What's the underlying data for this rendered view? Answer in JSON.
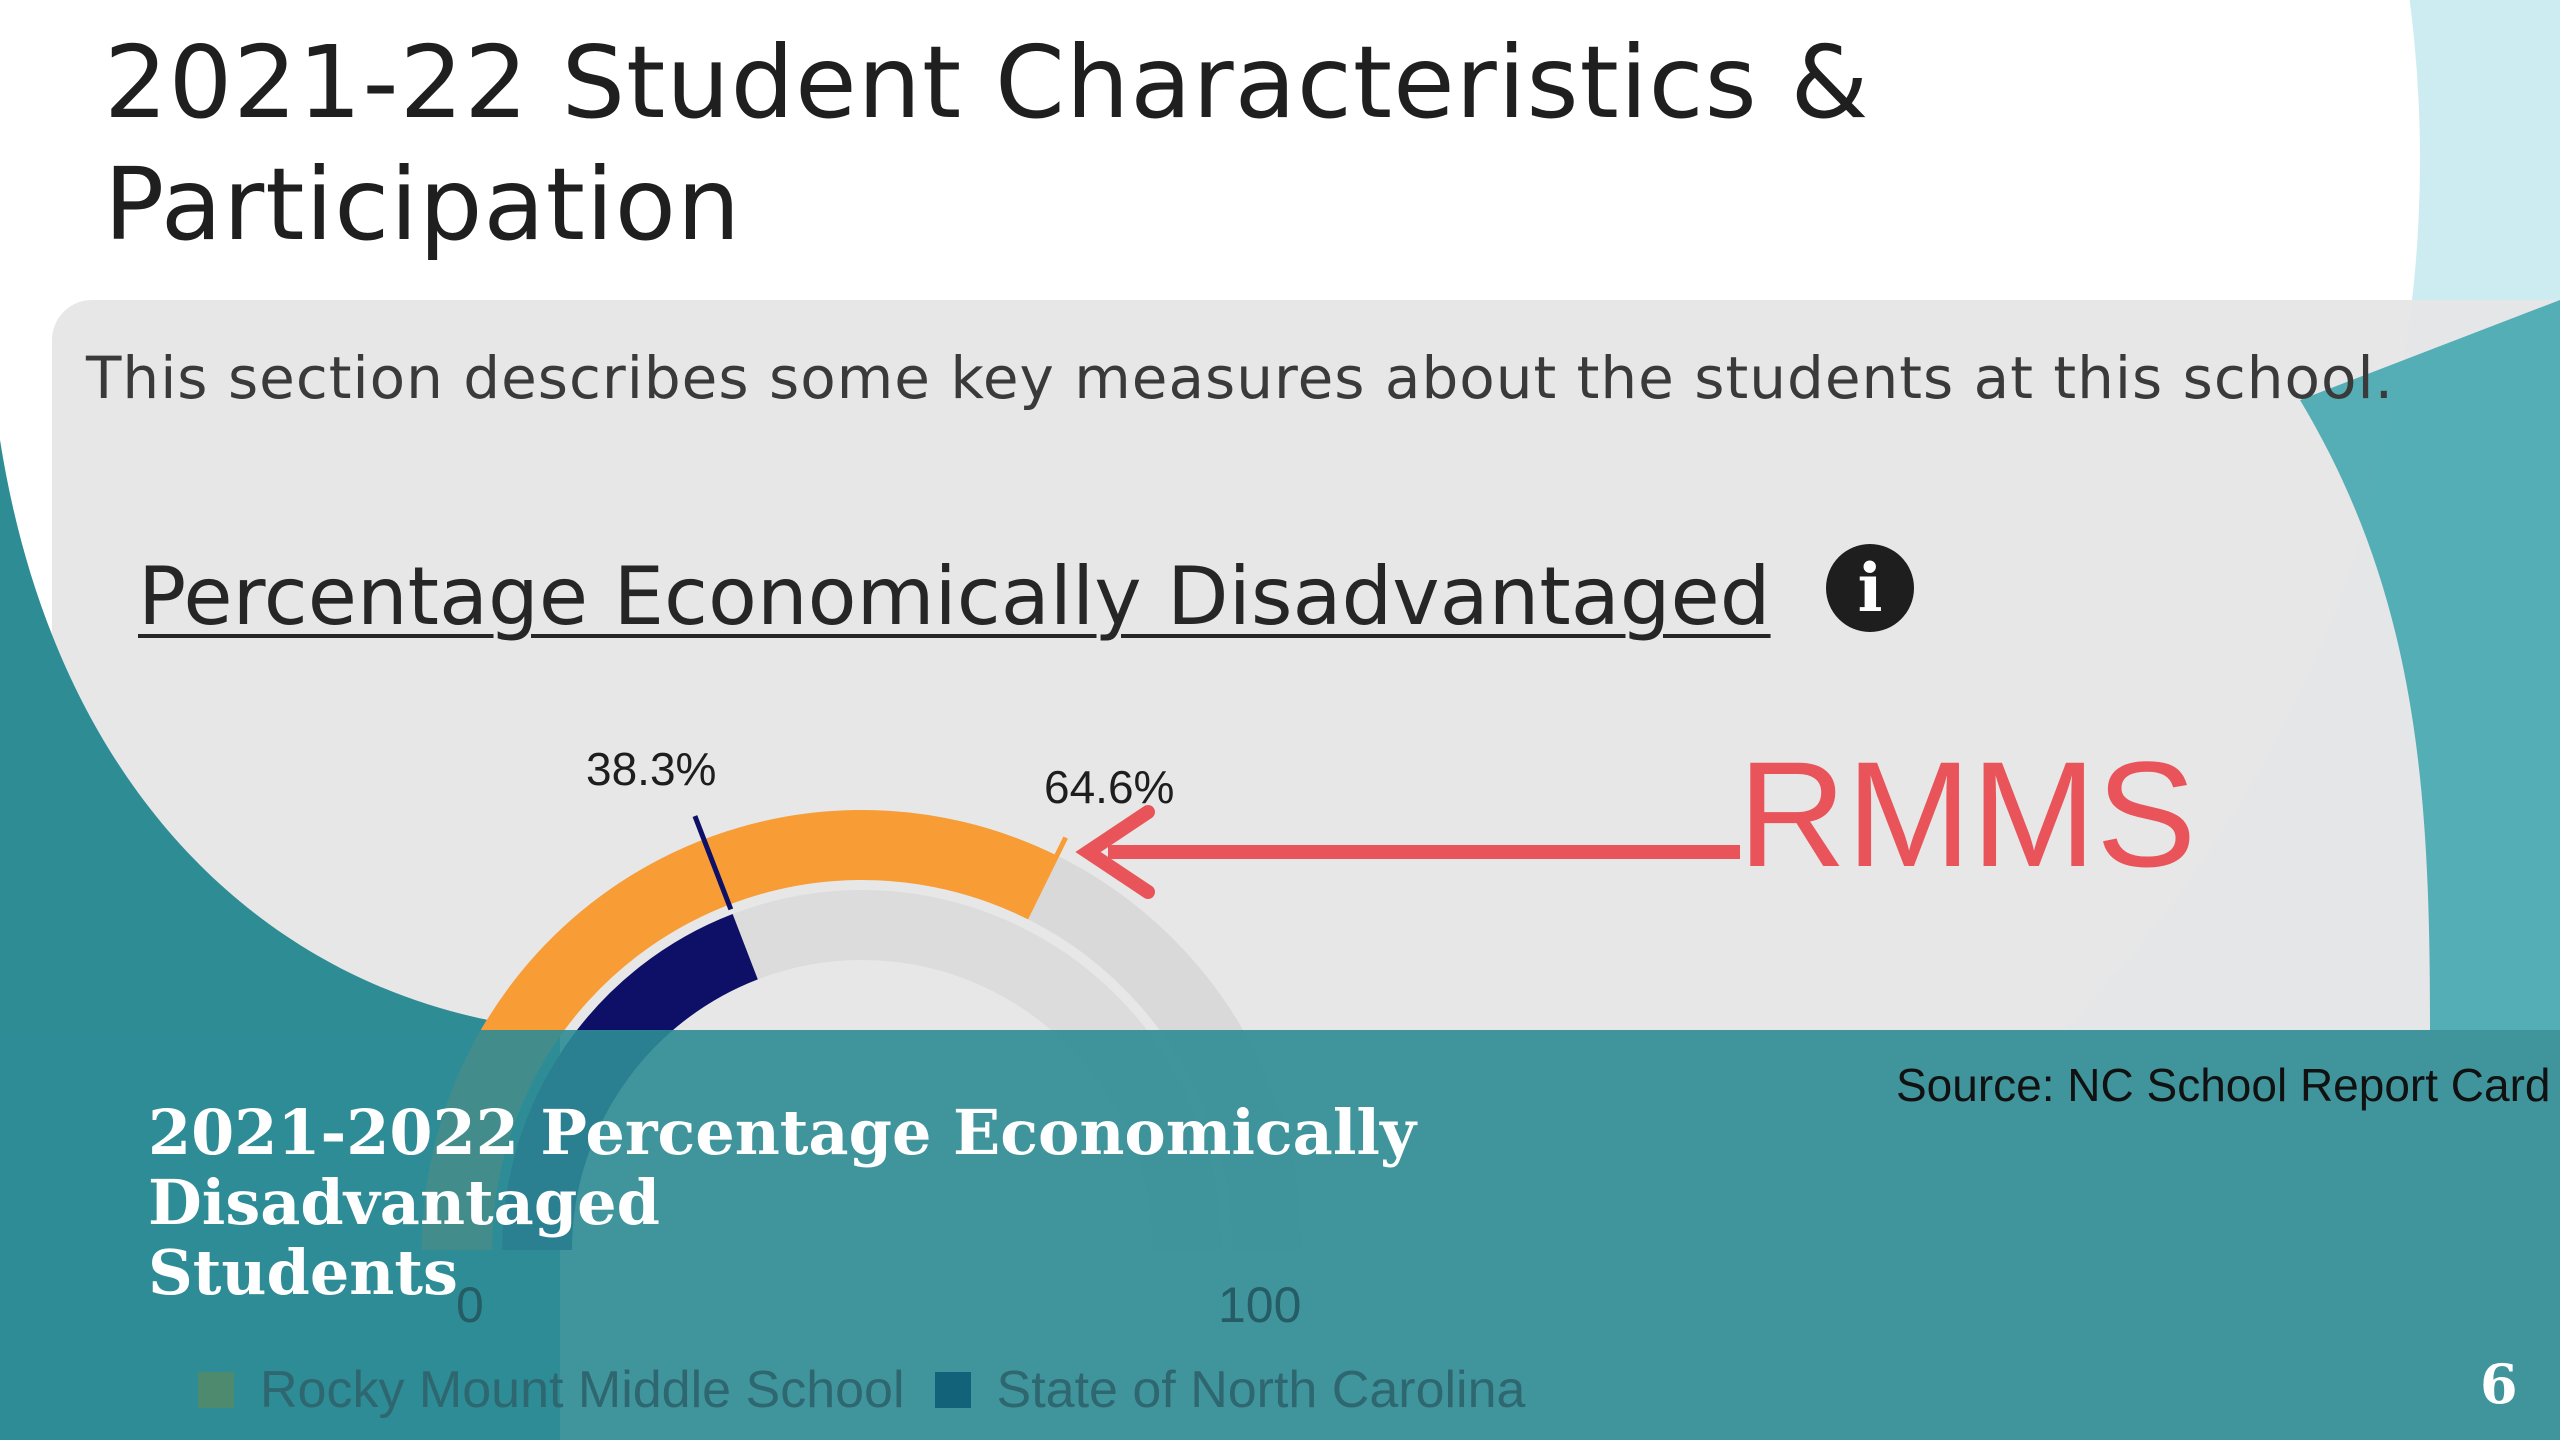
{
  "slide": {
    "title": "2021-22 Student Characteristics & Participation",
    "intro": "This section describes some key measures about the students at this school.",
    "metric_heading": "Percentage Economically Disadvantaged",
    "info_icon": "info-icon",
    "annotation": "RMMS",
    "source": "Source: NC School Report Card",
    "caption_lines": [
      "2021-2022 Percentage Economically",
      "Disadvantaged",
      "Students"
    ],
    "page_number": "6"
  },
  "colors": {
    "school": "#f89c35",
    "state": "#0d1066",
    "teal_overlay": "#2e8c95",
    "light_teal": "#cdecf1",
    "card": "#e6e6e6",
    "annotation": "#e8545a"
  },
  "chart_data": {
    "type": "gauge",
    "min": 0,
    "max": 100,
    "min_label": "0",
    "max_label": "100",
    "series": [
      {
        "name": "Rocky Mount Middle School",
        "value": 64.6,
        "label": "64.6%"
      },
      {
        "name": "State of North Carolina",
        "value": 38.3,
        "label": "38.3%"
      }
    ]
  }
}
